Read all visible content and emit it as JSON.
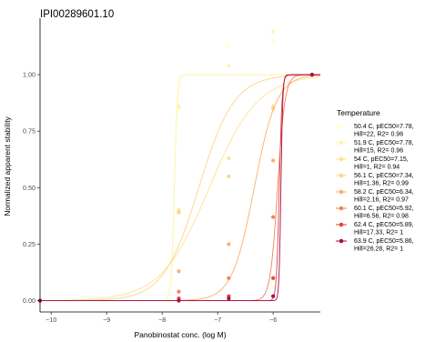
{
  "chart_data": {
    "type": "scatter",
    "title": "IPI00289601.10",
    "xlabel": "Panobinostat conc. (log M)",
    "ylabel": "Normalized apparent stability",
    "xlim": [
      -10.2,
      -5.15
    ],
    "ylim": [
      -0.05,
      1.25
    ],
    "xticks": [
      -10,
      -9,
      -8,
      -7,
      -6
    ],
    "xtick_labels": [
      "−10",
      "−9",
      "−8",
      "−7",
      "−6"
    ],
    "yticks": [
      0,
      0.25,
      0.5,
      0.75,
      1
    ],
    "ytick_labels": [
      "0.00",
      "0.25",
      "0.50",
      "0.75",
      "1.00"
    ],
    "grid": false,
    "legend": {
      "title": "Temperature",
      "placement": "right"
    },
    "series": [
      {
        "name": "50.4 C,  pEC50=7.78,\nHill=22,  R2= 0.96",
        "color": "#FFFFCC",
        "pec50": 7.78,
        "hill": 22,
        "points": [
          [
            -10.2,
            0.0
          ],
          [
            -7.7,
            0.85
          ],
          [
            -6.8,
            1.13
          ],
          [
            -6.0,
            1.15
          ],
          [
            -5.3,
            1.0
          ]
        ]
      },
      {
        "name": "51.9 C,  pEC50=7.78,\nHill=15,  R2= 0.96",
        "color": "#FFF3B0",
        "pec50": 7.78,
        "hill": 15,
        "points": [
          [
            -10.2,
            0.0
          ],
          [
            -7.7,
            0.86
          ],
          [
            -6.8,
            1.04
          ],
          [
            -6.0,
            1.19
          ],
          [
            -5.3,
            1.0
          ]
        ]
      },
      {
        "name": "54 C,  pEC50=7.15,\nHill=1,  R2= 0.94",
        "color": "#FEE391",
        "pec50": 7.15,
        "hill": 1,
        "points": [
          [
            -10.2,
            0.0
          ],
          [
            -7.7,
            0.4
          ],
          [
            -6.8,
            0.63
          ],
          [
            -6.0,
            0.86
          ],
          [
            -5.3,
            1.0
          ]
        ]
      },
      {
        "name": "56.1 C,  pEC50=7.34,\nHill=1.36,  R2= 0.99",
        "color": "#FED38A",
        "pec50": 7.34,
        "hill": 1.36,
        "points": [
          [
            -10.2,
            0.0
          ],
          [
            -7.7,
            0.39
          ],
          [
            -6.8,
            0.55
          ],
          [
            -6.0,
            0.85
          ],
          [
            -5.3,
            1.0
          ]
        ]
      },
      {
        "name": "58.2 C,  pEC50=6.34,\nHill=2.16,  R2= 0.97",
        "color": "#FDAE6B",
        "pec50": 6.34,
        "hill": 2.16,
        "points": [
          [
            -10.2,
            0.0
          ],
          [
            -7.7,
            0.13
          ],
          [
            -6.8,
            0.25
          ],
          [
            -6.0,
            0.62
          ],
          [
            -5.3,
            1.0
          ]
        ]
      },
      {
        "name": "60.1 C,  pEC50=5.92,\nHill=6.56,  R2= 0.98",
        "color": "#F4845A",
        "pec50": 5.92,
        "hill": 6.56,
        "points": [
          [
            -10.2,
            0.0
          ],
          [
            -7.7,
            0.04
          ],
          [
            -6.8,
            0.1
          ],
          [
            -6.0,
            0.37
          ],
          [
            -5.3,
            1.0
          ]
        ]
      },
      {
        "name": "62.4 C,  pEC50=5.89,\nHill=17.33,  R2= 1",
        "color": "#E1463B",
        "pec50": 5.89,
        "hill": 17.33,
        "points": [
          [
            -10.2,
            0.0
          ],
          [
            -7.7,
            0.01
          ],
          [
            -6.8,
            0.02
          ],
          [
            -6.0,
            0.1
          ],
          [
            -5.3,
            1.0
          ]
        ]
      },
      {
        "name": "63.9 C,  pEC50=5.86,\nHill=26.28,  R2= 1",
        "color": "#A50F4A",
        "pec50": 5.86,
        "hill": 26.28,
        "points": [
          [
            -10.2,
            0.0
          ],
          [
            -7.7,
            0.0
          ],
          [
            -6.8,
            0.01
          ],
          [
            -6.0,
            0.02
          ],
          [
            -5.3,
            1.0
          ]
        ]
      }
    ]
  }
}
